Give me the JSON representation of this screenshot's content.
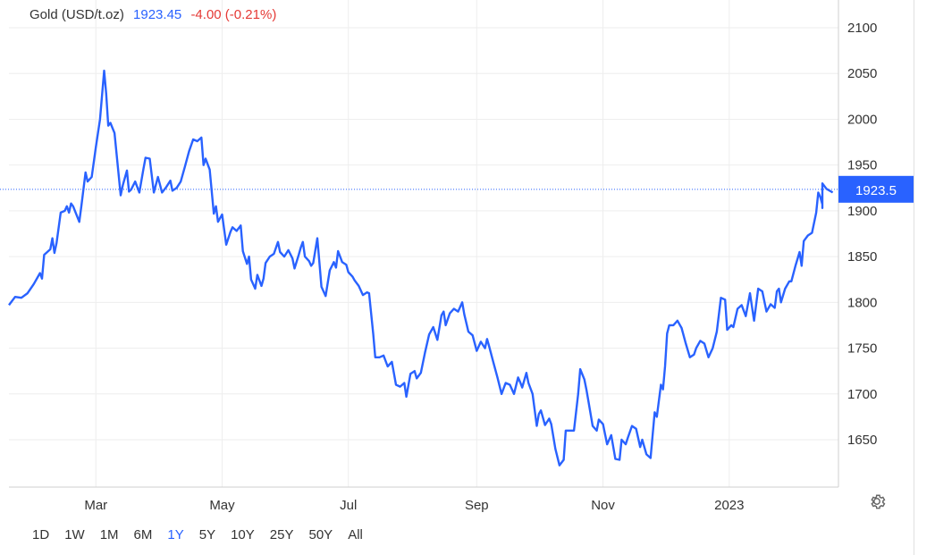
{
  "header": {
    "name": "Gold (USD/t.oz)",
    "price": "1923.45",
    "change": "-4.00 (-0.21%)"
  },
  "ranges": [
    "1D",
    "1W",
    "1M",
    "6M",
    "1Y",
    "5Y",
    "10Y",
    "25Y",
    "50Y",
    "All"
  ],
  "active_range": "1Y",
  "colors": {
    "line": "#2962ff",
    "grid": "#eeeeee",
    "axis_text": "#333333",
    "change_negative": "#e53935",
    "price_tag_bg": "#2962ff"
  },
  "settings_icon": "gear-icon",
  "chart_data": {
    "type": "line",
    "title": "",
    "xlabel": "",
    "ylabel": "",
    "ylim": [
      1600,
      2120
    ],
    "y_ticks": [
      1650,
      1700,
      1750,
      1800,
      1850,
      1900,
      1950,
      2000,
      2050,
      2100
    ],
    "x_ticks": [
      {
        "label": "Mar",
        "x": "2022-03-01"
      },
      {
        "label": "May",
        "x": "2022-05-01"
      },
      {
        "label": "Jul",
        "x": "2022-07-01"
      },
      {
        "label": "Sep",
        "x": "2022-09-01"
      },
      {
        "label": "Nov",
        "x": "2022-11-01"
      },
      {
        "label": "2023",
        "x": "2023-01-01"
      }
    ],
    "xlim": [
      "2022-01-18",
      "2023-02-15"
    ],
    "grid": true,
    "last_price_label": "1923.5",
    "series": [
      {
        "values": [
          [
            "2022-01-18",
            1797
          ],
          [
            "2022-01-21",
            1806
          ],
          [
            "2022-01-24",
            1805
          ],
          [
            "2022-01-27",
            1810
          ],
          [
            "2022-01-30",
            1820
          ],
          [
            "2022-02-02",
            1832
          ],
          [
            "2022-02-03",
            1826
          ],
          [
            "2022-02-04",
            1852
          ],
          [
            "2022-02-07",
            1858
          ],
          [
            "2022-02-08",
            1870
          ],
          [
            "2022-02-09",
            1854
          ],
          [
            "2022-02-10",
            1865
          ],
          [
            "2022-02-12",
            1898
          ],
          [
            "2022-02-14",
            1900
          ],
          [
            "2022-02-15",
            1905
          ],
          [
            "2022-02-16",
            1898
          ],
          [
            "2022-02-17",
            1908
          ],
          [
            "2022-02-18",
            1905
          ],
          [
            "2022-02-21",
            1888
          ],
          [
            "2022-02-22",
            1905
          ],
          [
            "2022-02-24",
            1942
          ],
          [
            "2022-02-25",
            1932
          ],
          [
            "2022-02-27",
            1937
          ],
          [
            "2022-03-01",
            1970
          ],
          [
            "2022-03-03",
            2000
          ],
          [
            "2022-03-05",
            2053
          ],
          [
            "2022-03-06",
            2028
          ],
          [
            "2022-03-07",
            1993
          ],
          [
            "2022-03-08",
            1996
          ],
          [
            "2022-03-10",
            1985
          ],
          [
            "2022-03-13",
            1917
          ],
          [
            "2022-03-14",
            1928
          ],
          [
            "2022-03-16",
            1944
          ],
          [
            "2022-03-17",
            1921
          ],
          [
            "2022-03-18",
            1923
          ],
          [
            "2022-03-20",
            1932
          ],
          [
            "2022-03-22",
            1920
          ],
          [
            "2022-03-24",
            1946
          ],
          [
            "2022-03-25",
            1958
          ],
          [
            "2022-03-27",
            1957
          ],
          [
            "2022-03-29",
            1920
          ],
          [
            "2022-03-31",
            1937
          ],
          [
            "2022-04-02",
            1920
          ],
          [
            "2022-04-04",
            1926
          ],
          [
            "2022-04-06",
            1933
          ],
          [
            "2022-04-07",
            1922
          ],
          [
            "2022-04-09",
            1925
          ],
          [
            "2022-04-11",
            1932
          ],
          [
            "2022-04-13",
            1948
          ],
          [
            "2022-04-15",
            1965
          ],
          [
            "2022-04-17",
            1978
          ],
          [
            "2022-04-19",
            1976
          ],
          [
            "2022-04-21",
            1980
          ],
          [
            "2022-04-22",
            1950
          ],
          [
            "2022-04-23",
            1957
          ],
          [
            "2022-04-25",
            1945
          ],
          [
            "2022-04-27",
            1897
          ],
          [
            "2022-04-28",
            1905
          ],
          [
            "2022-04-29",
            1888
          ],
          [
            "2022-05-01",
            1896
          ],
          [
            "2022-05-03",
            1863
          ],
          [
            "2022-05-05",
            1877
          ],
          [
            "2022-05-06",
            1882
          ],
          [
            "2022-05-08",
            1878
          ],
          [
            "2022-05-10",
            1884
          ],
          [
            "2022-05-11",
            1856
          ],
          [
            "2022-05-13",
            1842
          ],
          [
            "2022-05-14",
            1850
          ],
          [
            "2022-05-15",
            1825
          ],
          [
            "2022-05-17",
            1815
          ],
          [
            "2022-05-18",
            1830
          ],
          [
            "2022-05-20",
            1818
          ],
          [
            "2022-05-21",
            1826
          ],
          [
            "2022-05-22",
            1843
          ],
          [
            "2022-05-24",
            1850
          ],
          [
            "2022-05-26",
            1853
          ],
          [
            "2022-05-28",
            1866
          ],
          [
            "2022-05-29",
            1855
          ],
          [
            "2022-05-31",
            1850
          ],
          [
            "2022-06-02",
            1857
          ],
          [
            "2022-06-04",
            1848
          ],
          [
            "2022-06-05",
            1837
          ],
          [
            "2022-06-07",
            1852
          ],
          [
            "2022-06-08",
            1860
          ],
          [
            "2022-06-09",
            1866
          ],
          [
            "2022-06-10",
            1850
          ],
          [
            "2022-06-12",
            1845
          ],
          [
            "2022-06-13",
            1840
          ],
          [
            "2022-06-14",
            1843
          ],
          [
            "2022-06-16",
            1870
          ],
          [
            "2022-06-17",
            1844
          ],
          [
            "2022-06-18",
            1817
          ],
          [
            "2022-06-20",
            1807
          ],
          [
            "2022-06-22",
            1835
          ],
          [
            "2022-06-24",
            1844
          ],
          [
            "2022-06-25",
            1838
          ],
          [
            "2022-06-26",
            1856
          ],
          [
            "2022-06-28",
            1844
          ],
          [
            "2022-06-30",
            1841
          ],
          [
            "2022-07-01",
            1833
          ],
          [
            "2022-07-03",
            1828
          ],
          [
            "2022-07-04",
            1824
          ],
          [
            "2022-07-06",
            1818
          ],
          [
            "2022-07-08",
            1808
          ],
          [
            "2022-07-10",
            1811
          ],
          [
            "2022-07-11",
            1810
          ],
          [
            "2022-07-13",
            1766
          ],
          [
            "2022-07-14",
            1740
          ],
          [
            "2022-07-16",
            1740
          ],
          [
            "2022-07-18",
            1742
          ],
          [
            "2022-07-20",
            1730
          ],
          [
            "2022-07-22",
            1735
          ],
          [
            "2022-07-24",
            1710
          ],
          [
            "2022-07-26",
            1708
          ],
          [
            "2022-07-28",
            1712
          ],
          [
            "2022-07-29",
            1697
          ],
          [
            "2022-07-31",
            1722
          ],
          [
            "2022-08-02",
            1725
          ],
          [
            "2022-08-03",
            1717
          ],
          [
            "2022-08-05",
            1723
          ],
          [
            "2022-08-07",
            1745
          ],
          [
            "2022-08-09",
            1765
          ],
          [
            "2022-08-11",
            1773
          ],
          [
            "2022-08-13",
            1759
          ],
          [
            "2022-08-15",
            1786
          ],
          [
            "2022-08-16",
            1790
          ],
          [
            "2022-08-17",
            1775
          ],
          [
            "2022-08-19",
            1788
          ],
          [
            "2022-08-21",
            1793
          ],
          [
            "2022-08-23",
            1790
          ],
          [
            "2022-08-25",
            1800
          ],
          [
            "2022-08-26",
            1787
          ],
          [
            "2022-08-28",
            1768
          ],
          [
            "2022-08-30",
            1764
          ],
          [
            "2022-09-01",
            1747
          ],
          [
            "2022-09-03",
            1757
          ],
          [
            "2022-09-05",
            1750
          ],
          [
            "2022-09-06",
            1760
          ],
          [
            "2022-09-07",
            1752
          ],
          [
            "2022-09-09",
            1735
          ],
          [
            "2022-09-11",
            1718
          ],
          [
            "2022-09-13",
            1700
          ],
          [
            "2022-09-15",
            1712
          ],
          [
            "2022-09-17",
            1710
          ],
          [
            "2022-09-19",
            1700
          ],
          [
            "2022-09-21",
            1718
          ],
          [
            "2022-09-22",
            1713
          ],
          [
            "2022-09-23",
            1707
          ],
          [
            "2022-09-25",
            1723
          ],
          [
            "2022-09-26",
            1712
          ],
          [
            "2022-09-28",
            1700
          ],
          [
            "2022-09-30",
            1665
          ],
          [
            "2022-10-01",
            1678
          ],
          [
            "2022-10-02",
            1682
          ],
          [
            "2022-10-04",
            1666
          ],
          [
            "2022-10-06",
            1673
          ],
          [
            "2022-10-07",
            1667
          ],
          [
            "2022-10-09",
            1640
          ],
          [
            "2022-10-11",
            1622
          ],
          [
            "2022-10-13",
            1628
          ],
          [
            "2022-10-14",
            1660
          ],
          [
            "2022-10-16",
            1660
          ],
          [
            "2022-10-18",
            1660
          ],
          [
            "2022-10-20",
            1700
          ],
          [
            "2022-10-21",
            1727
          ],
          [
            "2022-10-23",
            1716
          ],
          [
            "2022-10-24",
            1705
          ],
          [
            "2022-10-25",
            1692
          ],
          [
            "2022-10-27",
            1665
          ],
          [
            "2022-10-29",
            1660
          ],
          [
            "2022-10-30",
            1672
          ],
          [
            "2022-11-01",
            1667
          ],
          [
            "2022-11-03",
            1645
          ],
          [
            "2022-11-05",
            1655
          ],
          [
            "2022-11-07",
            1629
          ],
          [
            "2022-11-09",
            1628
          ],
          [
            "2022-11-10",
            1650
          ],
          [
            "2022-11-12",
            1645
          ],
          [
            "2022-11-13",
            1652
          ],
          [
            "2022-11-15",
            1665
          ],
          [
            "2022-11-17",
            1662
          ],
          [
            "2022-11-19",
            1642
          ],
          [
            "2022-11-20",
            1650
          ],
          [
            "2022-11-22",
            1634
          ],
          [
            "2022-11-24",
            1630
          ],
          [
            "2022-11-26",
            1680
          ],
          [
            "2022-11-27",
            1675
          ],
          [
            "2022-11-29",
            1710
          ],
          [
            "2022-11-30",
            1705
          ],
          [
            "2022-12-01",
            1730
          ],
          [
            "2022-12-02",
            1766
          ],
          [
            "2022-12-03",
            1775
          ],
          [
            "2022-12-05",
            1775
          ],
          [
            "2022-12-07",
            1780
          ],
          [
            "2022-12-09",
            1772
          ],
          [
            "2022-12-11",
            1755
          ],
          [
            "2022-12-13",
            1740
          ],
          [
            "2022-12-15",
            1743
          ],
          [
            "2022-12-16",
            1750
          ],
          [
            "2022-12-18",
            1758
          ],
          [
            "2022-12-20",
            1755
          ],
          [
            "2022-12-22",
            1740
          ],
          [
            "2022-12-24",
            1750
          ],
          [
            "2022-12-26",
            1768
          ],
          [
            "2022-12-28",
            1805
          ],
          [
            "2022-12-30",
            1803
          ],
          [
            "2022-12-31",
            1770
          ],
          [
            "2023-01-02",
            1775
          ],
          [
            "2023-01-03",
            1773
          ],
          [
            "2023-01-05",
            1793
          ],
          [
            "2023-01-07",
            1797
          ],
          [
            "2023-01-09",
            1785
          ],
          [
            "2023-01-11",
            1810
          ],
          [
            "2023-01-12",
            1795
          ],
          [
            "2023-01-13",
            1780
          ],
          [
            "2023-01-15",
            1815
          ],
          [
            "2023-01-17",
            1812
          ],
          [
            "2023-01-19",
            1790
          ],
          [
            "2023-01-21",
            1798
          ],
          [
            "2023-01-23",
            1794
          ],
          [
            "2023-01-24",
            1812
          ],
          [
            "2023-01-25",
            1815
          ],
          [
            "2023-01-26",
            1800
          ],
          [
            "2023-01-28",
            1815
          ],
          [
            "2023-01-30",
            1823
          ],
          [
            "2023-01-31",
            1823
          ],
          [
            "2023-02-02",
            1840
          ],
          [
            "2023-02-04",
            1855
          ],
          [
            "2023-02-05",
            1840
          ],
          [
            "2023-02-06",
            1867
          ],
          [
            "2023-02-08",
            1873
          ],
          [
            "2023-02-10",
            1876
          ],
          [
            "2023-02-12",
            1898
          ],
          [
            "2023-02-13",
            1920
          ],
          [
            "2023-02-14",
            1915
          ],
          [
            "2023-02-15",
            1907
          ],
          [
            "2023-02-15",
            1903
          ],
          [
            "2023-02-15",
            1930
          ]
        ]
      }
    ]
  }
}
